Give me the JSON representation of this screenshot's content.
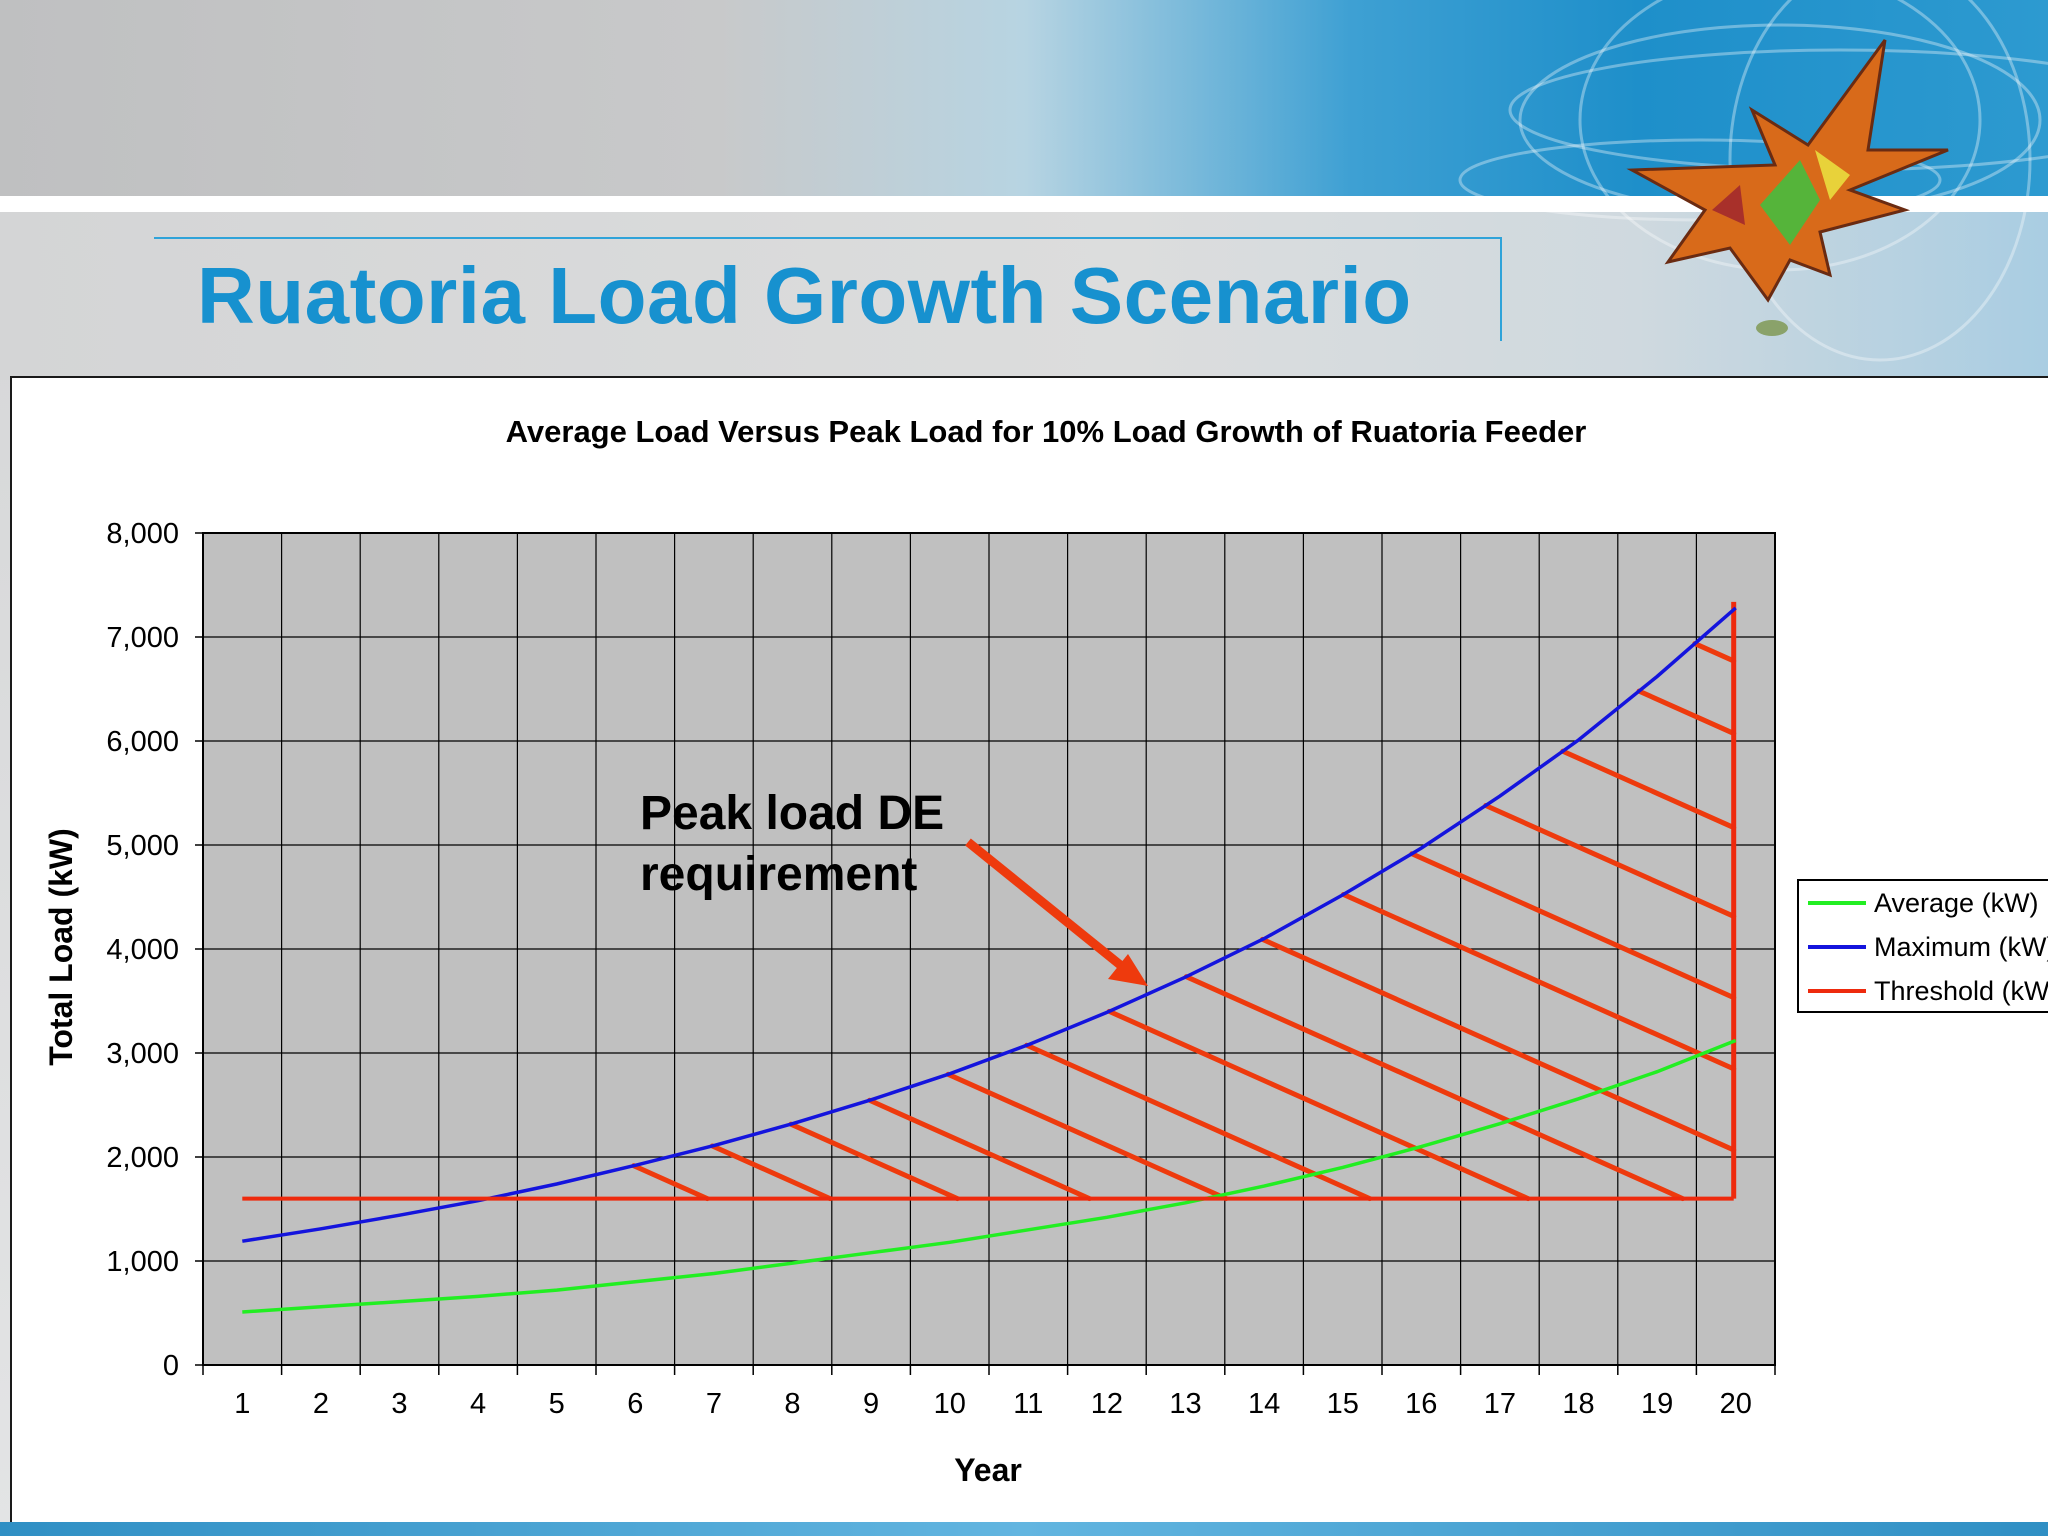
{
  "slide": {
    "title": "Ruatoria Load Growth Scenario"
  },
  "chart_data": {
    "type": "line",
    "title": "Average Load Versus Peak Load for 10% Load Growth of Ruatoria Feeder",
    "xlabel": "Year",
    "ylabel": "Total Load (kW)",
    "categories": [
      "1",
      "2",
      "3",
      "4",
      "5",
      "6",
      "7",
      "8",
      "9",
      "10",
      "11",
      "12",
      "13",
      "14",
      "15",
      "16",
      "17",
      "18",
      "19",
      "20"
    ],
    "ylim": [
      0,
      8000
    ],
    "yticks": [
      0,
      1000,
      2000,
      3000,
      4000,
      5000,
      6000,
      7000,
      8000
    ],
    "ytick_labels": [
      "0",
      "1,000",
      "2,000",
      "3,000",
      "4,000",
      "5,000",
      "6,000",
      "7,000",
      "8,000"
    ],
    "grid": true,
    "legend_position": "right",
    "series": [
      {
        "name": "Average (kW)",
        "color": "#22ee22",
        "values": [
          510,
          560,
          610,
          660,
          720,
          800,
          880,
          980,
          1080,
          1180,
          1300,
          1420,
          1560,
          1720,
          1900,
          2100,
          2320,
          2560,
          2820,
          3120
        ]
      },
      {
        "name": "Maximum (kW)",
        "color": "#1414dd",
        "values": [
          1190,
          1310,
          1440,
          1580,
          1740,
          1920,
          2110,
          2320,
          2550,
          2800,
          3080,
          3390,
          3730,
          4100,
          4520,
          4970,
          5470,
          6010,
          6620,
          7280
        ]
      },
      {
        "name": "Threshold (kW)",
        "color": "#ee2a0d",
        "values": [
          1600,
          1600,
          1600,
          1600,
          1600,
          1600,
          1600,
          1600,
          1600,
          1600,
          1600,
          1600,
          1600,
          1600,
          1600,
          1600,
          1600,
          1600,
          1600,
          1600
        ]
      }
    ],
    "annotation": {
      "line1": "Peak load DE",
      "line2": "requirement",
      "color": "#ee3a0d"
    }
  }
}
